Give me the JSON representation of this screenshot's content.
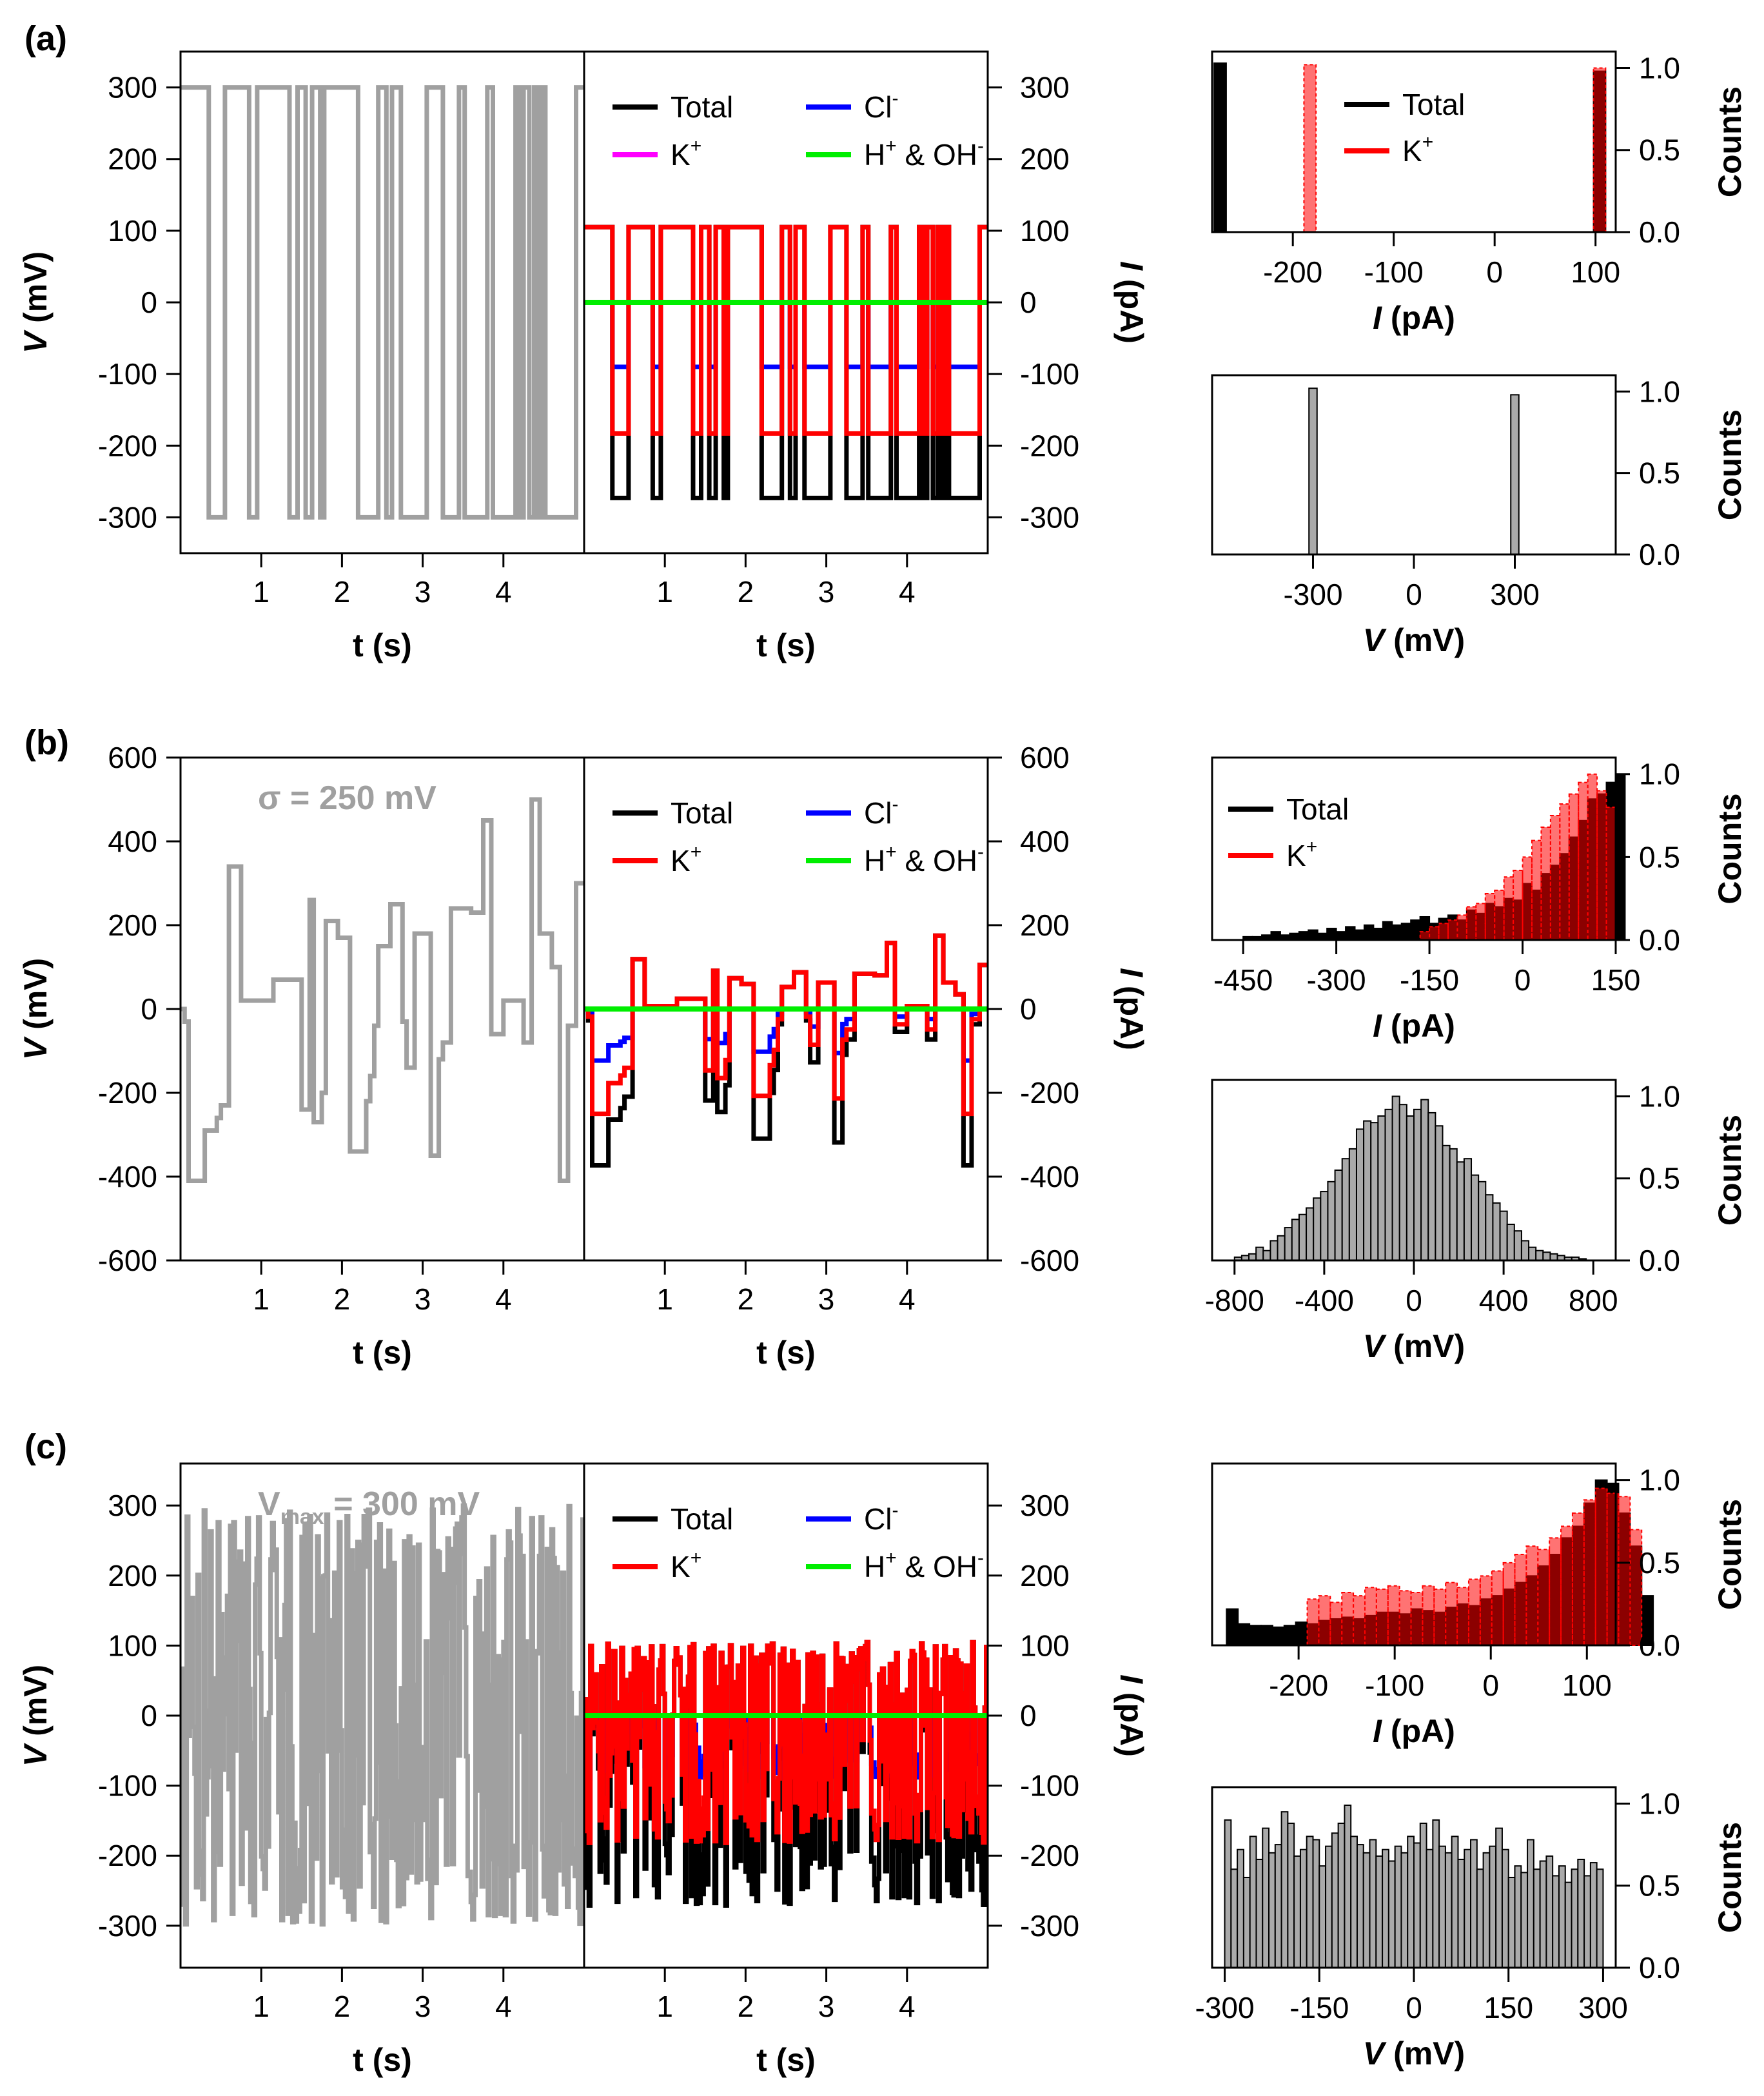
{
  "figure": {
    "colors": {
      "v_trace": "#a0a0a0",
      "total": "#000000",
      "cl": "#0000ff",
      "k": "#ff0000",
      "h_oh": "#00ee00",
      "k_legend_a": "#ff00ff",
      "hist_v_fill": "#aaaaaa"
    },
    "legend_text": {
      "total": "Total",
      "k": "K",
      "k_sup": "+",
      "cl": "Cl",
      "cl_sup": "-",
      "h": "H",
      "h_sup": "+",
      "amp": "& OH",
      "oh_sup": "-"
    },
    "axis_text": {
      "v_prefix": "V",
      "v_suffix": " (mV)",
      "i_prefix": "I",
      "i_suffix": " (pA)",
      "t_label": "t (s)",
      "counts": "Counts"
    }
  },
  "chart_data": [
    {
      "panel": "a",
      "panel_label": "(a)",
      "type": "line",
      "role": "voltage_trace",
      "annotation": null,
      "xlabel": "t (s)",
      "ylabel": "V (mV)",
      "xlim": [
        0,
        5
      ],
      "ylim": [
        -350,
        350
      ],
      "xticks": [
        1,
        2,
        3,
        4
      ],
      "yticks": [
        300,
        200,
        100,
        0,
        -100,
        -200,
        -300
      ],
      "series": [
        {
          "name": "V",
          "step_x": [
            0,
            0.35,
            0.55,
            0.85,
            0.95,
            1.35,
            1.45,
            1.55,
            1.63,
            1.73,
            1.78,
            2.2,
            2.45,
            2.55,
            2.62,
            2.73,
            3.05,
            3.25,
            3.45,
            3.52,
            3.8,
            3.87,
            4.15,
            4.2,
            4.25,
            4.32,
            4.38,
            4.42,
            4.47,
            4.52,
            4.55,
            4.9,
            5.0
          ],
          "values": [
            300,
            -300,
            300,
            -300,
            300,
            -300,
            300,
            -300,
            300,
            -300,
            300,
            -300,
            300,
            -300,
            300,
            -300,
            300,
            -300,
            300,
            -300,
            300,
            -300,
            300,
            -300,
            300,
            -300,
            300,
            -300,
            300,
            -300,
            -300,
            300
          ]
        }
      ]
    },
    {
      "panel": "a",
      "type": "line",
      "role": "current_trace",
      "xlabel": "t (s)",
      "ylabel": "I (pA)",
      "xlim": [
        0,
        5
      ],
      "ylim": [
        -350,
        350
      ],
      "xticks": [
        1,
        2,
        3,
        4
      ],
      "yticks": [
        300,
        200,
        100,
        0,
        -100,
        -200,
        -300
      ],
      "legend": [
        "Total",
        "K+",
        "Cl-",
        "H+ & OH-"
      ],
      "legend_k_color": "#ff00ff",
      "pos_state": {
        "Total": 104,
        "K+": 104,
        "Cl-": 0,
        "H+ & OH-": 0
      },
      "neg_state": {
        "Total": -272,
        "K+": -183,
        "Cl-": -90,
        "H+ & OH-": 0
      }
    },
    {
      "panel": "a",
      "type": "bar",
      "role": "current_hist",
      "xlabel": "I (pA)",
      "ylabel": "Counts",
      "xlim": [
        -280,
        120
      ],
      "ylim": [
        0,
        1.1
      ],
      "xticks": [
        -200,
        -100,
        0,
        100
      ],
      "yticks": [
        0.0,
        0.5,
        1.0
      ],
      "legend": [
        "Total",
        "K+"
      ],
      "series": [
        {
          "name": "Total",
          "bins": [
            [
              -272,
              1.03
            ],
            [
              104,
              0.98
            ]
          ],
          "bin_width": 12
        },
        {
          "name": "K+",
          "bins": [
            [
              -183,
              1.02
            ],
            [
              104,
              1.0
            ]
          ],
          "bin_width": 12
        }
      ]
    },
    {
      "panel": "a",
      "type": "bar",
      "role": "voltage_hist",
      "xlabel": "V (mV)",
      "ylabel": "Counts",
      "xlim": [
        -600,
        600
      ],
      "ylim": [
        0,
        1.1
      ],
      "xticks": [
        -300,
        0,
        300
      ],
      "yticks": [
        0.0,
        0.5,
        1.0
      ],
      "series": [
        {
          "name": "V",
          "bins": [
            [
              -300,
              1.02
            ],
            [
              300,
              0.98
            ]
          ],
          "bin_width": 24
        }
      ]
    },
    {
      "panel": "b",
      "panel_label": "(b)",
      "type": "line",
      "role": "voltage_trace",
      "annotation": "σ = 250 mV",
      "xlabel": "t (s)",
      "ylabel": "V (mV)",
      "xlim": [
        0,
        5
      ],
      "ylim": [
        -600,
        600
      ],
      "xticks": [
        1,
        2,
        3,
        4
      ],
      "yticks": [
        600,
        400,
        200,
        0,
        -200,
        -400,
        -600
      ],
      "series": [
        {
          "name": "V",
          "step_x": [
            0,
            0.05,
            0.1,
            0.3,
            0.45,
            0.5,
            0.6,
            0.75,
            1.15,
            1.5,
            1.6,
            1.65,
            1.75,
            1.8,
            1.95,
            2.1,
            2.3,
            2.35,
            2.4,
            2.45,
            2.6,
            2.75,
            2.8,
            2.9,
            3.1,
            3.2,
            3.25,
            3.35,
            3.6,
            3.75,
            3.85,
            4.0,
            4.25,
            4.35,
            4.45,
            4.6,
            4.7,
            4.8,
            4.9,
            5.0
          ],
          "values": [
            0,
            -30,
            -410,
            -290,
            -260,
            -230,
            340,
            20,
            70,
            -240,
            260,
            -270,
            -200,
            210,
            170,
            -340,
            -220,
            -160,
            -40,
            150,
            250,
            -30,
            -140,
            180,
            -350,
            -120,
            -80,
            240,
            230,
            450,
            -60,
            20,
            -80,
            500,
            180,
            100,
            -410,
            -40,
            300
          ]
        }
      ]
    },
    {
      "panel": "b",
      "type": "line",
      "role": "current_trace",
      "xlabel": "t (s)",
      "ylabel": "I (pA)",
      "xlim": [
        0,
        5
      ],
      "ylim": [
        -600,
        600
      ],
      "xticks": [
        1,
        2,
        3,
        4
      ],
      "yticks": [
        600,
        400,
        200,
        0,
        -200,
        -400,
        -600
      ],
      "legend": [
        "Total",
        "K+",
        "Cl-",
        "H+ & OH-"
      ],
      "legend_k_color": "#ff0000"
    },
    {
      "panel": "b",
      "type": "bar",
      "role": "current_hist",
      "xlabel": "I (pA)",
      "ylabel": "Counts",
      "xlim": [
        -500,
        150
      ],
      "ylim": [
        0,
        1.1
      ],
      "xticks": [
        -450,
        -300,
        -150,
        0,
        150
      ],
      "yticks": [
        0.0,
        0.5,
        1.0
      ],
      "legend": [
        "Total",
        "K+"
      ],
      "bin_start": -450,
      "bin_width": 15,
      "series": [
        {
          "name": "Total",
          "values": [
            0.02,
            0.02,
            0.03,
            0.05,
            0.03,
            0.04,
            0.05,
            0.06,
            0.04,
            0.07,
            0.05,
            0.08,
            0.06,
            0.09,
            0.07,
            0.11,
            0.09,
            0.1,
            0.12,
            0.14,
            0.1,
            0.13,
            0.15,
            0.12,
            0.18,
            0.16,
            0.22,
            0.2,
            0.25,
            0.24,
            0.34,
            0.3,
            0.4,
            0.45,
            0.52,
            0.62,
            0.72,
            0.85,
            0.88,
            0.95,
            1.0
          ]
        },
        {
          "name": "K+",
          "values": [
            0.0,
            0.0,
            0.0,
            0.0,
            0.0,
            0.0,
            0.0,
            0.0,
            0.0,
            0.0,
            0.0,
            0.0,
            0.0,
            0.0,
            0.0,
            0.0,
            0.0,
            0.0,
            0.0,
            0.05,
            0.08,
            0.1,
            0.12,
            0.15,
            0.2,
            0.22,
            0.28,
            0.3,
            0.38,
            0.42,
            0.5,
            0.6,
            0.68,
            0.75,
            0.82,
            0.88,
            0.95,
            1.0,
            0.9,
            0.8,
            0.0
          ]
        }
      ]
    },
    {
      "panel": "b",
      "type": "bar",
      "role": "voltage_hist",
      "xlabel": "V (mV)",
      "ylabel": "Counts",
      "xlim": [
        -900,
        900
      ],
      "ylim": [
        0,
        1.1
      ],
      "xticks": [
        -800,
        -400,
        0,
        400,
        800
      ],
      "yticks": [
        0.0,
        0.5,
        1.0
      ],
      "bin_start": -800,
      "bin_width": 32,
      "series": [
        {
          "name": "V",
          "values": [
            0.02,
            0.03,
            0.04,
            0.08,
            0.06,
            0.12,
            0.15,
            0.2,
            0.25,
            0.28,
            0.32,
            0.38,
            0.42,
            0.48,
            0.55,
            0.62,
            0.68,
            0.8,
            0.85,
            0.84,
            0.88,
            0.92,
            1.0,
            0.95,
            0.88,
            0.92,
            0.98,
            0.9,
            0.82,
            0.7,
            0.68,
            0.6,
            0.62,
            0.52,
            0.48,
            0.4,
            0.35,
            0.3,
            0.22,
            0.18,
            0.12,
            0.08,
            0.06,
            0.05,
            0.04,
            0.03,
            0.02,
            0.02,
            0.01,
            0.0
          ]
        }
      ]
    },
    {
      "panel": "c",
      "panel_label": "(c)",
      "type": "line",
      "role": "voltage_trace",
      "annotation": "V",
      "annotation_sub": "max",
      "annotation_tail": " = 300 mV",
      "xlabel": "t (s)",
      "ylabel": "V (mV)",
      "xlim": [
        0,
        5
      ],
      "ylim": [
        -360,
        360
      ],
      "xticks": [
        1,
        2,
        3,
        4
      ],
      "yticks": [
        300,
        200,
        100,
        0,
        -100,
        -200,
        -300
      ],
      "seed": 7,
      "n_steps": 260
    },
    {
      "panel": "c",
      "type": "line",
      "role": "current_trace",
      "xlabel": "t (s)",
      "ylabel": "I (pA)",
      "xlim": [
        0,
        5
      ],
      "ylim": [
        -360,
        360
      ],
      "xticks": [
        1,
        2,
        3,
        4
      ],
      "yticks": [
        300,
        200,
        100,
        0,
        -100,
        -200,
        -300
      ],
      "legend": [
        "Total",
        "K+",
        "Cl-",
        "H+ & OH-"
      ],
      "legend_k_color": "#ff0000"
    },
    {
      "panel": "c",
      "type": "bar",
      "role": "current_hist",
      "xlabel": "I (pA)",
      "ylabel": "Counts",
      "xlim": [
        -290,
        130
      ],
      "ylim": [
        0,
        1.1
      ],
      "xticks": [
        -200,
        -100,
        0,
        100
      ],
      "yticks": [
        0.0,
        0.5,
        1.0
      ],
      "legend": [],
      "bin_start": -275,
      "bin_width": 12,
      "series": [
        {
          "name": "Total",
          "values": [
            0.22,
            0.13,
            0.12,
            0.12,
            0.11,
            0.12,
            0.14,
            0.13,
            0.15,
            0.16,
            0.17,
            0.16,
            0.18,
            0.2,
            0.2,
            0.19,
            0.22,
            0.21,
            0.2,
            0.23,
            0.25,
            0.24,
            0.28,
            0.3,
            0.34,
            0.38,
            0.42,
            0.48,
            0.55,
            0.65,
            0.72,
            0.86,
            1.0,
            0.98,
            0.8,
            0.6,
            0.3
          ]
        },
        {
          "name": "K+",
          "values": [
            0.0,
            0.0,
            0.0,
            0.0,
            0.0,
            0.0,
            0.0,
            0.28,
            0.3,
            0.26,
            0.32,
            0.3,
            0.35,
            0.34,
            0.36,
            0.33,
            0.32,
            0.36,
            0.34,
            0.38,
            0.35,
            0.4,
            0.42,
            0.45,
            0.5,
            0.55,
            0.6,
            0.58,
            0.65,
            0.72,
            0.8,
            0.88,
            0.95,
            0.92,
            0.9,
            0.7,
            0.0
          ]
        }
      ]
    },
    {
      "panel": "c",
      "type": "bar",
      "role": "voltage_hist",
      "xlabel": "V (mV)",
      "ylabel": "Counts",
      "xlim": [
        -320,
        320
      ],
      "ylim": [
        0,
        1.1
      ],
      "xticks": [
        -300,
        -150,
        0,
        150,
        300
      ],
      "yticks": [
        0.0,
        0.5,
        1.0
      ],
      "bin_start": -300,
      "bin_width": 10,
      "series": [
        {
          "name": "V",
          "values": [
            0.9,
            0.6,
            0.72,
            0.55,
            0.8,
            0.66,
            0.85,
            0.7,
            0.75,
            0.95,
            0.88,
            0.68,
            0.72,
            0.8,
            0.78,
            0.62,
            0.74,
            0.82,
            0.88,
            0.99,
            0.8,
            0.75,
            0.7,
            0.78,
            0.68,
            0.72,
            0.65,
            0.74,
            0.7,
            0.8,
            0.76,
            0.88,
            0.72,
            0.9,
            0.74,
            0.7,
            0.8,
            0.66,
            0.72,
            0.78,
            0.6,
            0.7,
            0.74,
            0.85,
            0.72,
            0.55,
            0.62,
            0.58,
            0.78,
            0.6,
            0.65,
            0.68,
            0.56,
            0.62,
            0.52,
            0.6,
            0.66,
            0.56,
            0.64,
            0.6
          ]
        }
      ]
    }
  ]
}
